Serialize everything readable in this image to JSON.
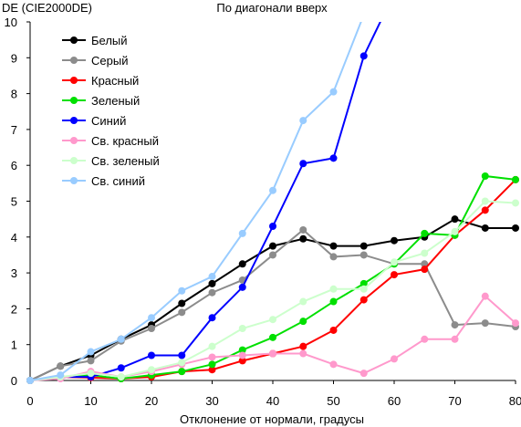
{
  "chart_data": {
    "type": "line",
    "title": "По диагонали вверх",
    "ylabel": "DE (CIE2000DE)",
    "xlabel": "Отклонение от нормали, градусы",
    "xlim": [
      0,
      80
    ],
    "ylim": [
      0,
      10
    ],
    "x_ticks": [
      0,
      10,
      20,
      30,
      40,
      50,
      60,
      70,
      80
    ],
    "y_ticks": [
      0,
      1,
      2,
      3,
      4,
      5,
      6,
      7,
      8,
      9,
      10
    ],
    "grid": false,
    "legend_position": "top-left",
    "x": [
      0,
      5,
      10,
      15,
      20,
      25,
      30,
      35,
      40,
      45,
      50,
      55,
      60,
      65,
      70,
      75,
      80
    ],
    "series": [
      {
        "name": "Белый",
        "color": "#000000",
        "values": [
          0,
          0.4,
          0.7,
          1.15,
          1.55,
          2.15,
          2.7,
          3.25,
          3.75,
          3.95,
          3.75,
          3.75,
          3.9,
          4.0,
          4.5,
          4.25,
          4.25
        ]
      },
      {
        "name": "Серый",
        "color": "#8c8c8c",
        "values": [
          0,
          0.4,
          0.55,
          1.1,
          1.45,
          1.9,
          2.45,
          2.8,
          3.5,
          4.2,
          3.45,
          3.5,
          3.25,
          3.25,
          1.55,
          1.6,
          1.5
        ]
      },
      {
        "name": "Красный",
        "color": "#ff0000",
        "values": [
          0,
          0.1,
          0.08,
          0.05,
          0.1,
          0.25,
          0.3,
          0.55,
          0.75,
          0.95,
          1.4,
          2.25,
          2.95,
          3.1,
          4.05,
          4.75,
          5.6
        ]
      },
      {
        "name": "Зеленый",
        "color": "#00e000",
        "values": [
          0,
          0.1,
          0.15,
          0.05,
          0.15,
          0.25,
          0.45,
          0.85,
          1.2,
          1.65,
          2.2,
          2.7,
          3.25,
          4.1,
          4.05,
          5.7,
          5.6
        ]
      },
      {
        "name": "Синий",
        "color": "#0000ff",
        "values": [
          0,
          0.1,
          0.1,
          0.35,
          0.7,
          0.7,
          1.75,
          2.6,
          4.3,
          6.05,
          6.2,
          9.05,
          10.8,
          null,
          null,
          null,
          null
        ]
      },
      {
        "name": "Св. красный",
        "color": "#ff99cc",
        "values": [
          0,
          0.05,
          0.25,
          0.1,
          0.25,
          0.45,
          0.65,
          0.7,
          0.75,
          0.75,
          0.45,
          0.2,
          0.6,
          1.15,
          1.15,
          2.35,
          1.6
        ]
      },
      {
        "name": "Св. зеленый",
        "color": "#ccffcc",
        "values": [
          0,
          0.1,
          0.2,
          0.1,
          0.3,
          0.5,
          0.95,
          1.45,
          1.7,
          2.2,
          2.55,
          2.55,
          3.3,
          3.55,
          4.15,
          5.0,
          4.95
        ]
      },
      {
        "name": "Св. синий",
        "color": "#99ccff",
        "values": [
          0,
          0.15,
          0.8,
          1.15,
          1.75,
          2.5,
          2.9,
          4.1,
          5.3,
          7.25,
          8.05,
          10.2,
          null,
          null,
          null,
          null,
          null
        ]
      }
    ]
  }
}
